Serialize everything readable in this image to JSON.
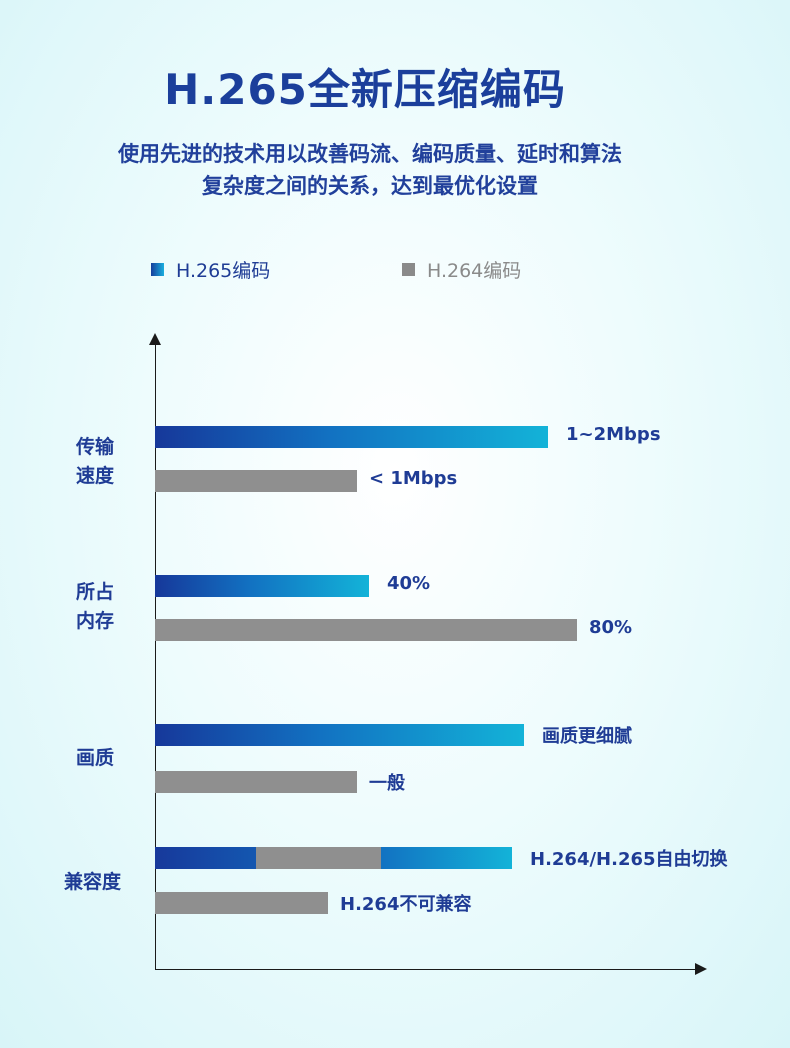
{
  "title": "H.265全新压缩编码",
  "subtitle": {
    "line1": "使用先进的技术用以改善码流、编码质量、延时和算法",
    "line2": "复杂度之间的关系，达到最优化设置"
  },
  "colors": {
    "title": "#1b3f9b",
    "h265_start": "#16389a",
    "h265_end": "#13b3d8",
    "h264": "#8f8f8f",
    "label": "#1f3c95"
  },
  "chart_data": {
    "type": "bar",
    "orientation": "horizontal",
    "legend": [
      "H.265编码",
      "H.264编码"
    ],
    "legend_position": "top",
    "categories": [
      [
        "传输",
        "速度"
      ],
      [
        "所占",
        "内存"
      ],
      [
        "画质"
      ],
      [
        "兼容度"
      ]
    ],
    "series": [
      {
        "name": "H.265编码",
        "values": [
          0.66,
          0.36,
          0.62,
          0.6
        ],
        "labels": [
          "1~2Mbps",
          "40%",
          "画质更细腻",
          "H.264/H.265自由切换"
        ]
      },
      {
        "name": "H.264编码",
        "values": [
          0.34,
          0.71,
          0.34,
          0.29
        ],
        "labels": [
          "< 1Mbps",
          "80%",
          "一般",
          "H.264不可兼容"
        ]
      }
    ],
    "compat_segments": [
      {
        "type": "H.265编码",
        "value": 0.17
      },
      {
        "type": "H.264编码",
        "value": 0.21
      },
      {
        "type": "H.265编码",
        "value": 0.22
      }
    ],
    "grid": false
  }
}
